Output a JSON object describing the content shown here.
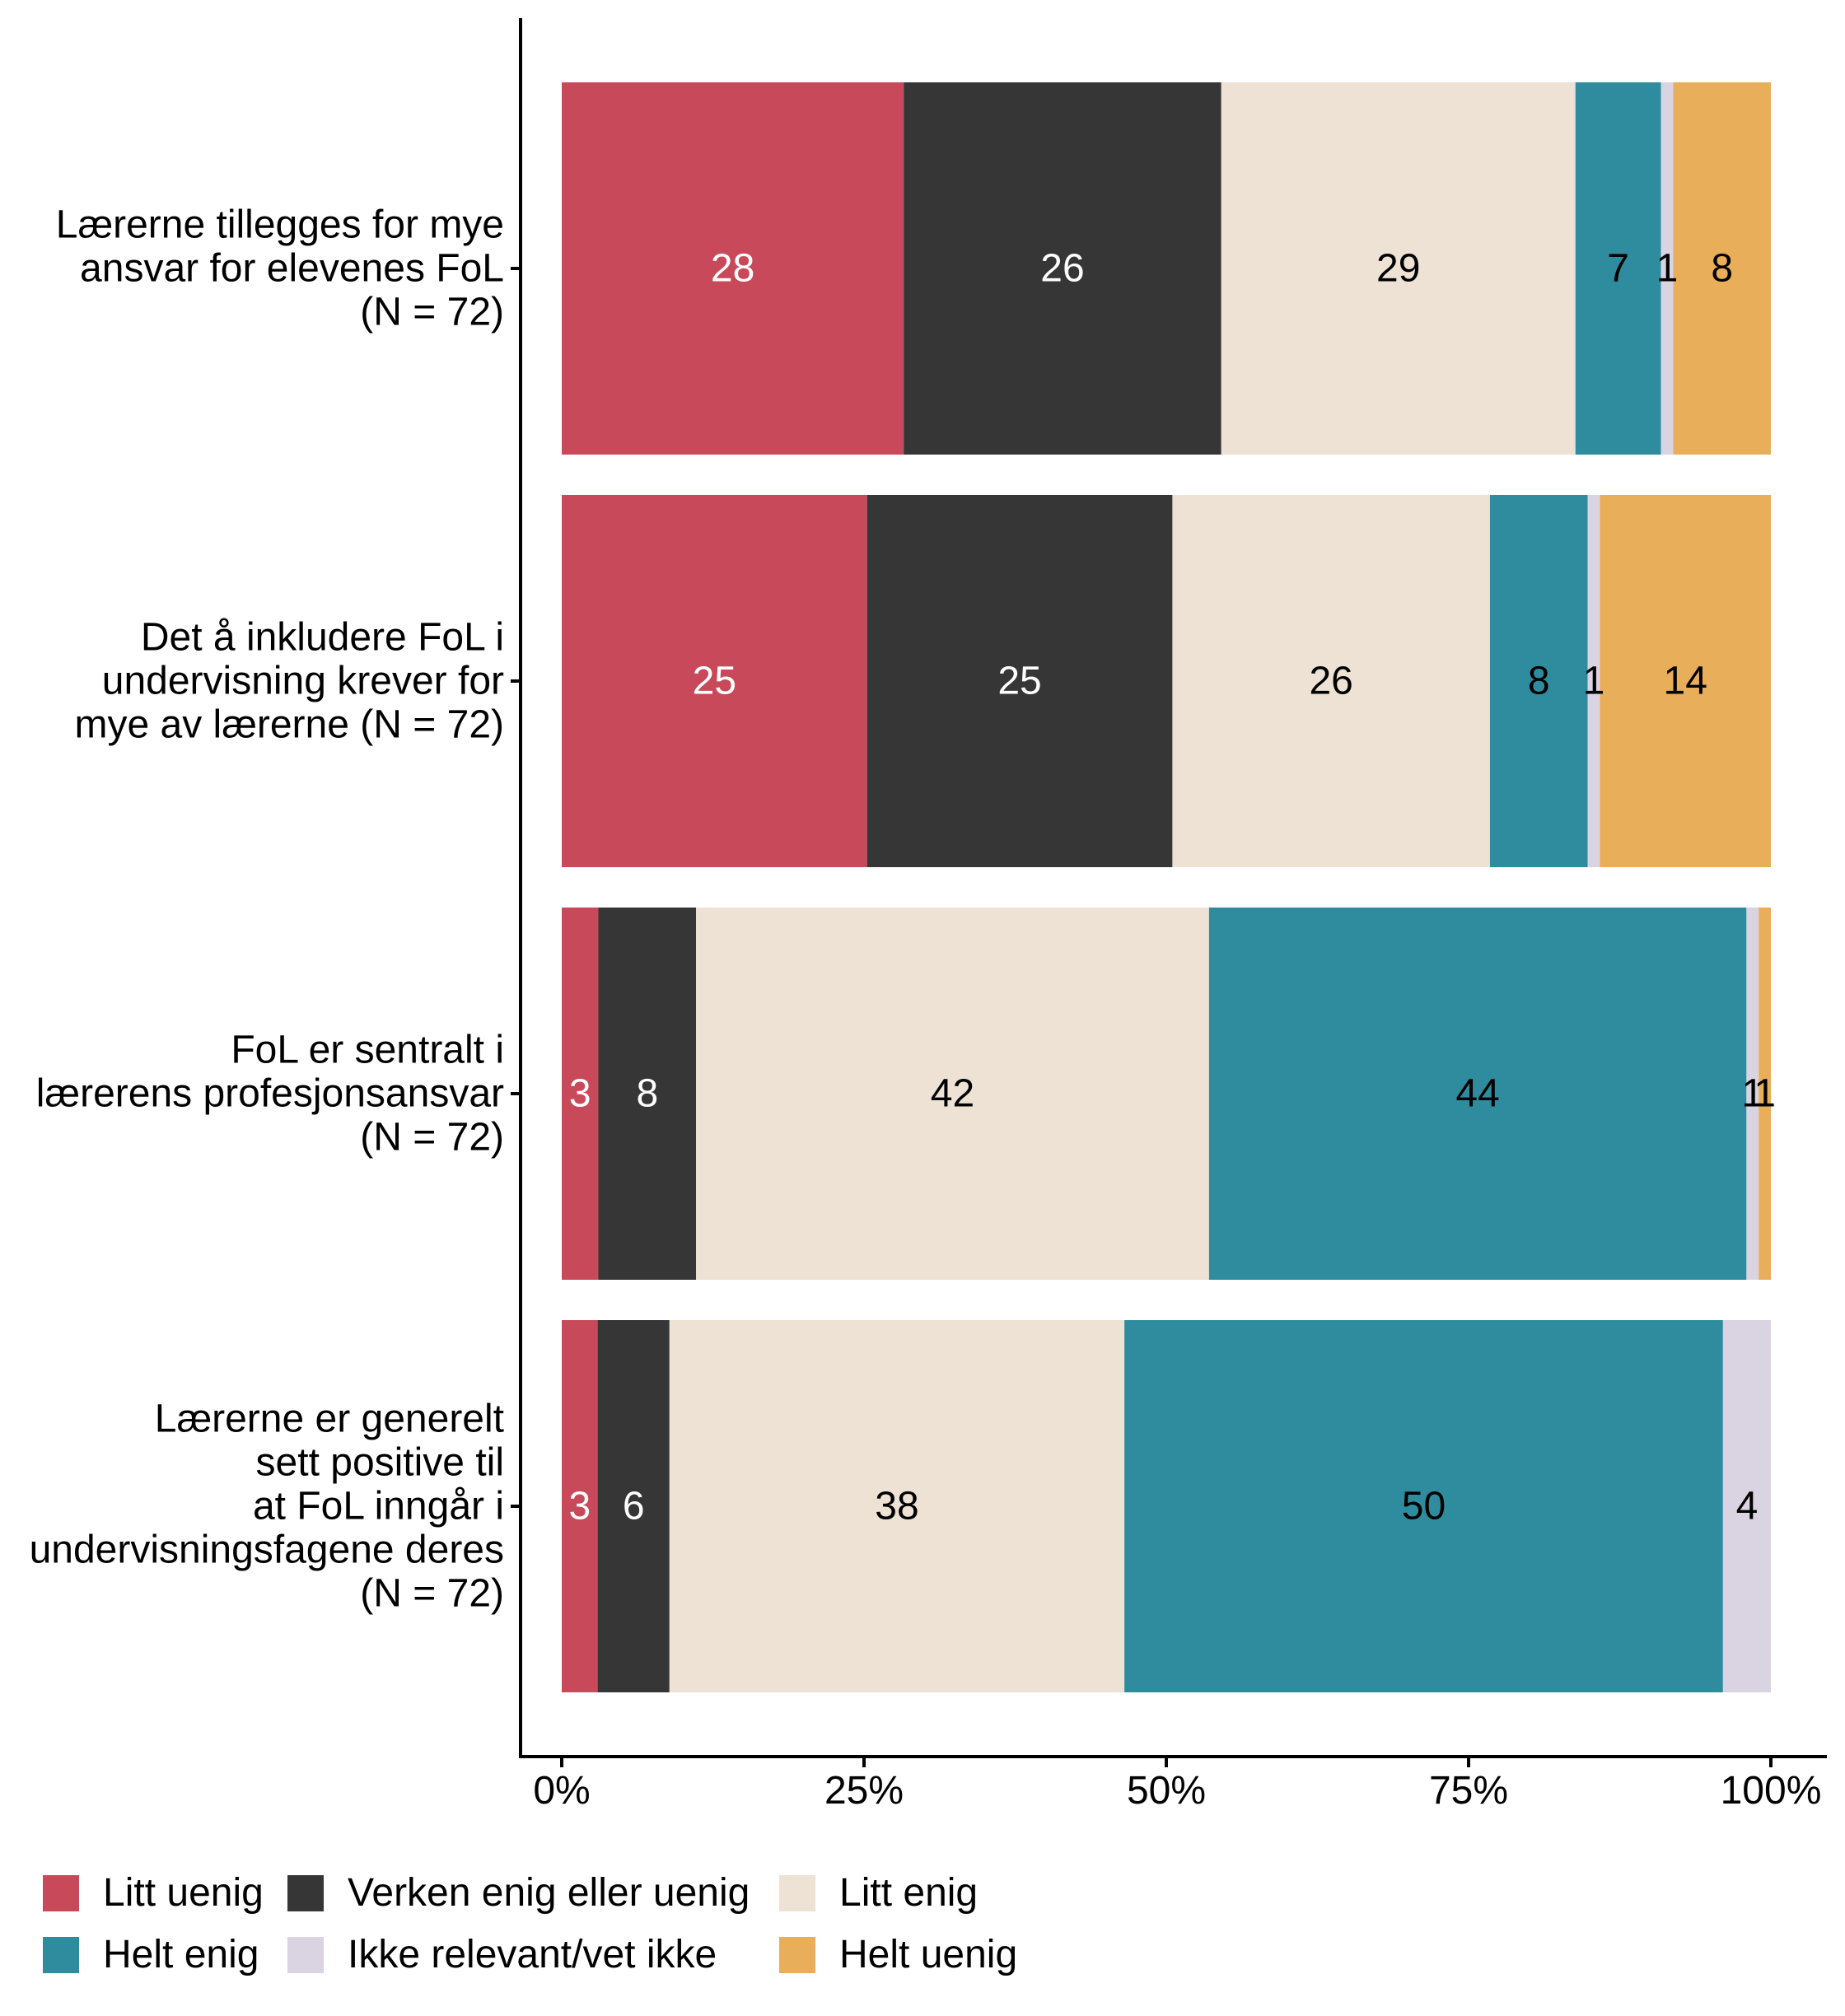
{
  "chart_data": {
    "type": "bar",
    "orientation": "horizontal",
    "stacked": true,
    "title": "",
    "xlabel": "",
    "ylabel": "",
    "xlim": [
      0,
      100
    ],
    "x_ticks": [
      0,
      25,
      50,
      75,
      100
    ],
    "x_tick_labels": [
      "0%",
      "25%",
      "50%",
      "75%",
      "100%"
    ],
    "grid": false,
    "legend_position": "bottom",
    "categories": [
      "Lærerne tillegges for mye\nansvar for elevenes FoL\n(N = 72)",
      "Det å inkludere FoL i\nundervisning krever for\nmye av lærerne (N = 72)",
      "FoL er sentralt i\nlærerens profesjonsansvar\n(N = 72)",
      "Lærerne er generelt\nsett positive til\nat FoL inngår i\nundervisningsfagene deres\n(N = 72)"
    ],
    "series": [
      {
        "name": "Litt uenig",
        "color": "#C84A5A",
        "label_color": "#FFFFFF",
        "values": [
          28,
          25,
          3,
          3
        ]
      },
      {
        "name": "Verken enig eller uenig",
        "color": "#363636",
        "label_color": "#FFFFFF",
        "values": [
          26,
          25,
          8,
          6
        ]
      },
      {
        "name": "Litt enig",
        "color": "#EDE2D3",
        "label_color": "#000000",
        "values": [
          29,
          26,
          42,
          38
        ]
      },
      {
        "name": "Helt enig",
        "color": "#2E8C9E",
        "label_color": "#000000",
        "values": [
          7,
          8,
          44,
          50
        ]
      },
      {
        "name": "Ikke relevant/vet ikke",
        "color": "#DAD3E2",
        "label_color": "#000000",
        "values": [
          1,
          1,
          1,
          4
        ]
      },
      {
        "name": "Helt uenig",
        "color": "#E8AE5A",
        "label_color": "#000000",
        "values": [
          8,
          14,
          1,
          0
        ]
      }
    ],
    "legend_order": [
      [
        "Litt uenig",
        "Verken enig eller uenig",
        "Litt enig"
      ],
      [
        "Helt enig",
        "Ikke relevant/vet ikke",
        "Helt uenig"
      ]
    ]
  }
}
